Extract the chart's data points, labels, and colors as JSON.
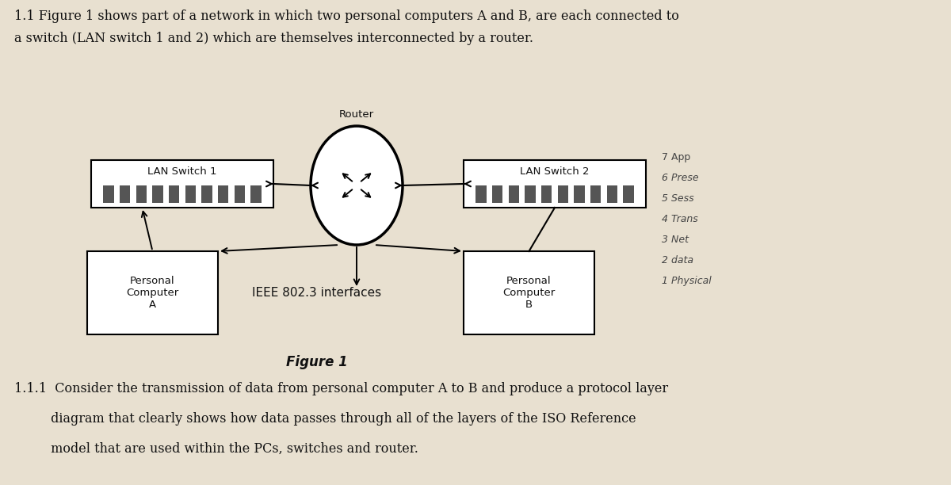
{
  "background_color": "#e8e0d0",
  "paper_color": "#f5f2ec",
  "title_text_line1": "1.1 Figure 1 shows part of a network in which two personal computers A and B, are each connected to",
  "title_text_line2": "a switch (LAN switch 1 and 2) which are themselves interconnected by a router.",
  "figure_label": "Figure 1",
  "router_label": "Router",
  "lan_switch1_label": "LAN Switch 1",
  "lan_switch2_label": "LAN Switch 2",
  "pc_a_label": "Personal\nComputer\nA",
  "pc_b_label": "Personal\nComputer\nB",
  "ieee_label": "IEEE 802.3 interfaces",
  "side_notes_line1": "7 App",
  "side_notes_line2": "6 Prese",
  "side_notes_line3": "5 Sess",
  "side_notes_line4": "4 Trans",
  "side_notes_line5": "3 Net",
  "side_notes_line6": "2 data",
  "side_notes_line7": "1 Physical",
  "body_text_line1": "1.1.1  Consider the transmission of data from personal computer A to B and produce a protocol layer",
  "body_text_line2": "         diagram that clearly shows how data passes through all of the layers of the ISO Reference",
  "body_text_line3": "         model that are used within the PCs, switches and router.",
  "box_color": "#ffffff",
  "box_edge_color": "#000000",
  "line_color": "#000000",
  "text_color": "#111111",
  "port_color": "#555555",
  "font_size_title": 11.5,
  "font_size_labels": 9.5,
  "font_size_body": 11.5,
  "font_size_sidenotes": 9,
  "font_size_figure": 11
}
